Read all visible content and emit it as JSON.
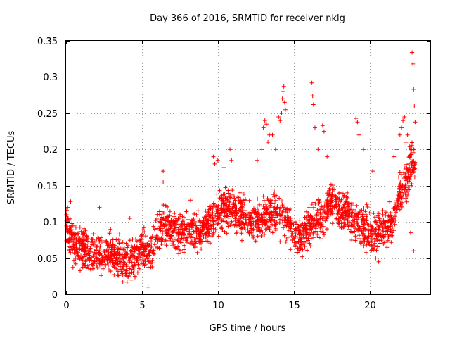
{
  "chart_data": {
    "type": "scatter",
    "title": "Day 366 of 2016, SRMTID for receiver nklg",
    "xlabel": "GPS time / hours",
    "ylabel": "SRMTID / TECUs",
    "xlim": [
      0,
      24
    ],
    "ylim": [
      0,
      0.35
    ],
    "xticks": [
      0,
      5,
      10,
      15,
      20
    ],
    "xtick_labels": [
      "0",
      "5",
      "10",
      "15",
      "20"
    ],
    "yticks": [
      0,
      0.05,
      0.1,
      0.15,
      0.2,
      0.25,
      0.3,
      0.35
    ],
    "ytick_labels": [
      "0",
      "0.05",
      "0.1",
      "0.15",
      "0.2",
      "0.25",
      "0.3",
      "0.35"
    ],
    "grid": true,
    "marker": "+",
    "color": "#ff0000",
    "series": [
      {
        "name": "SRMTID",
        "trend": [
          [
            0.0,
            0.095
          ],
          [
            0.5,
            0.07
          ],
          [
            1.0,
            0.065
          ],
          [
            1.5,
            0.06
          ],
          [
            2.0,
            0.055
          ],
          [
            2.5,
            0.058
          ],
          [
            3.0,
            0.055
          ],
          [
            3.5,
            0.048
          ],
          [
            4.0,
            0.045
          ],
          [
            4.5,
            0.05
          ],
          [
            5.0,
            0.065
          ],
          [
            5.5,
            0.06
          ],
          [
            6.0,
            0.08
          ],
          [
            6.5,
            0.095
          ],
          [
            7.0,
            0.09
          ],
          [
            7.5,
            0.085
          ],
          [
            8.0,
            0.09
          ],
          [
            8.5,
            0.085
          ],
          [
            9.0,
            0.09
          ],
          [
            9.5,
            0.1
          ],
          [
            10.0,
            0.11
          ],
          [
            10.5,
            0.12
          ],
          [
            11.0,
            0.115
          ],
          [
            11.5,
            0.11
          ],
          [
            12.0,
            0.1
          ],
          [
            12.5,
            0.1
          ],
          [
            13.0,
            0.105
          ],
          [
            13.5,
            0.11
          ],
          [
            14.0,
            0.115
          ],
          [
            14.5,
            0.1
          ],
          [
            15.0,
            0.085
          ],
          [
            15.5,
            0.08
          ],
          [
            16.0,
            0.095
          ],
          [
            16.5,
            0.1
          ],
          [
            17.0,
            0.11
          ],
          [
            17.5,
            0.13
          ],
          [
            18.0,
            0.12
          ],
          [
            18.5,
            0.11
          ],
          [
            19.0,
            0.1
          ],
          [
            19.5,
            0.095
          ],
          [
            20.0,
            0.085
          ],
          [
            20.5,
            0.085
          ],
          [
            21.0,
            0.09
          ],
          [
            21.5,
            0.1
          ],
          [
            22.0,
            0.14
          ],
          [
            22.5,
            0.16
          ],
          [
            22.8,
            0.18
          ]
        ],
        "spread": 0.028,
        "spikes": [
          [
            0.1,
            0.12
          ],
          [
            0.3,
            0.128
          ],
          [
            2.2,
            0.12
          ],
          [
            4.2,
            0.105
          ],
          [
            5.4,
            0.01
          ],
          [
            6.4,
            0.17
          ],
          [
            6.4,
            0.155
          ],
          [
            8.2,
            0.13
          ],
          [
            8.6,
            0.11
          ],
          [
            9.7,
            0.19
          ],
          [
            9.8,
            0.18
          ],
          [
            10.0,
            0.185
          ],
          [
            10.4,
            0.175
          ],
          [
            10.8,
            0.2
          ],
          [
            10.9,
            0.185
          ],
          [
            12.6,
            0.185
          ],
          [
            12.9,
            0.2
          ],
          [
            13.0,
            0.23
          ],
          [
            13.1,
            0.24
          ],
          [
            13.2,
            0.235
          ],
          [
            13.3,
            0.21
          ],
          [
            13.4,
            0.22
          ],
          [
            13.6,
            0.22
          ],
          [
            13.8,
            0.2
          ],
          [
            14.0,
            0.245
          ],
          [
            14.1,
            0.24
          ],
          [
            14.2,
            0.25
          ],
          [
            14.25,
            0.27
          ],
          [
            14.3,
            0.28
          ],
          [
            14.35,
            0.287
          ],
          [
            14.4,
            0.265
          ],
          [
            14.45,
            0.255
          ],
          [
            16.2,
            0.292
          ],
          [
            16.25,
            0.274
          ],
          [
            16.3,
            0.262
          ],
          [
            16.4,
            0.23
          ],
          [
            16.6,
            0.2
          ],
          [
            16.9,
            0.233
          ],
          [
            17.0,
            0.225
          ],
          [
            17.2,
            0.19
          ],
          [
            19.1,
            0.243
          ],
          [
            19.2,
            0.238
          ],
          [
            19.3,
            0.22
          ],
          [
            19.6,
            0.2
          ],
          [
            20.4,
            0.05
          ],
          [
            20.6,
            0.045
          ],
          [
            20.2,
            0.17
          ],
          [
            21.6,
            0.19
          ],
          [
            21.8,
            0.2
          ],
          [
            22.0,
            0.22
          ],
          [
            22.1,
            0.23
          ],
          [
            22.2,
            0.24
          ],
          [
            22.3,
            0.245
          ],
          [
            22.4,
            0.21
          ],
          [
            22.5,
            0.22
          ],
          [
            22.6,
            0.18
          ],
          [
            22.8,
            0.334
          ],
          [
            22.85,
            0.318
          ],
          [
            22.9,
            0.283
          ],
          [
            22.95,
            0.26
          ],
          [
            23.0,
            0.238
          ],
          [
            22.7,
            0.2
          ],
          [
            22.75,
            0.15
          ],
          [
            22.7,
            0.085
          ],
          [
            22.9,
            0.06
          ]
        ],
        "x_range": [
          0,
          23.0
        ],
        "n_points": 2300
      }
    ]
  }
}
